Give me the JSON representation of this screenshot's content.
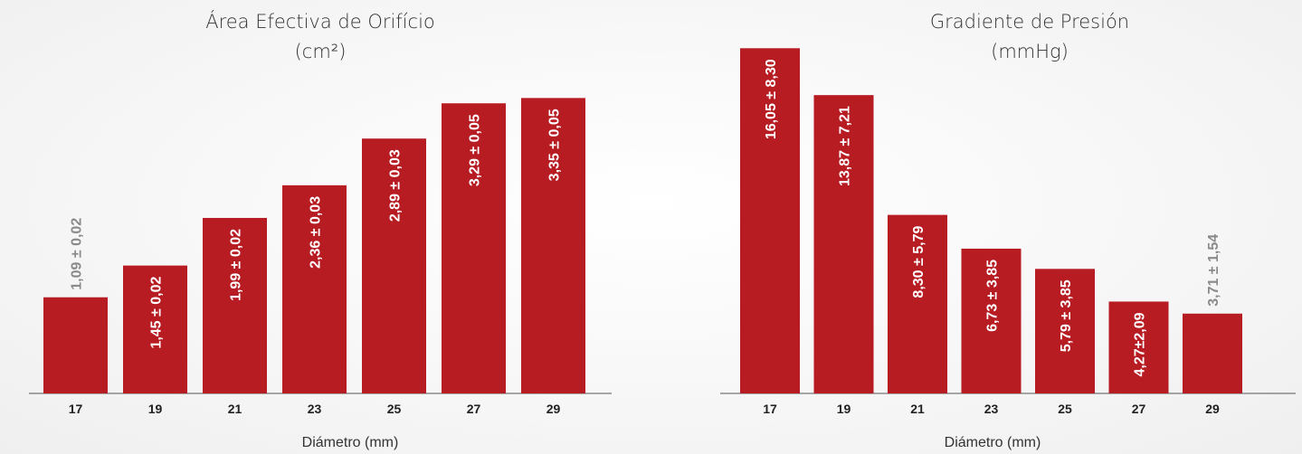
{
  "chart_data": [
    {
      "type": "bar",
      "title": "Área Efectiva de Orifício",
      "subtitle": "(cm²)",
      "xlabel": "Diámetro (mm)",
      "ylabel": "",
      "categories": [
        "17",
        "19",
        "21",
        "23",
        "25",
        "27",
        "29"
      ],
      "values": [
        1.09,
        1.45,
        1.99,
        2.36,
        2.89,
        3.29,
        3.35
      ],
      "value_labels": [
        "1,09 ± 0,02",
        "1,45 ± 0,02",
        "1,99 ± 0,02",
        "2,36 ± 0,03",
        "2,89 ± 0,03",
        "3,29 ± 0,05",
        "3,35 ± 0,05"
      ],
      "ylim": [
        0,
        3.6
      ],
      "grid": false,
      "bar_color": "#b71c22"
    },
    {
      "type": "bar",
      "title": "Gradiente de Presión",
      "subtitle": "(mmHg)",
      "xlabel": "Diámetro (mm)",
      "ylabel": "",
      "categories": [
        "17",
        "19",
        "21",
        "23",
        "25",
        "27",
        "29"
      ],
      "values": [
        16.05,
        13.87,
        8.3,
        6.73,
        5.79,
        4.27,
        3.71
      ],
      "value_labels": [
        "16,05 ± 8,30",
        "13,87 ± 7,21",
        "8,30 ± 5,79",
        "6,73 ± 3,85",
        "5,79 ± 3,85",
        "4,27±2,09",
        "3,71 ± 1,54"
      ],
      "ylim": [
        0,
        16.4
      ],
      "grid": false,
      "bar_color": "#b71c22"
    }
  ],
  "colors": {
    "bar": "#b71c22",
    "label_inside": "#ffffff",
    "label_outside": "#8a8a8a",
    "axis": "#555555"
  }
}
